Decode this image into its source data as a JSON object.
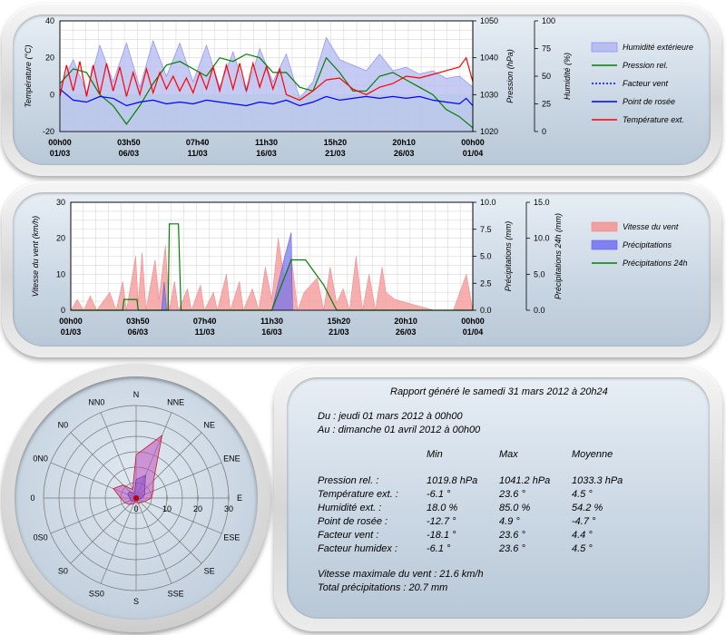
{
  "chart_data": [
    {
      "type": "line",
      "series": [
        {
          "name": "Humidité extérieure",
          "axis": "humidity",
          "color": "#8080ff"
        },
        {
          "name": "Pression rel.",
          "axis": "pressure",
          "color": "#008000"
        },
        {
          "name": "Facteur vent",
          "axis": "temperature",
          "color": "#0000ff",
          "dashed": true
        },
        {
          "name": "Point de rosée",
          "axis": "temperature",
          "color": "#0000ff"
        },
        {
          "name": "Température ext.",
          "axis": "temperature",
          "color": "#ff0000"
        }
      ],
      "ylabel": "Température (°C)",
      "y2label": "Pression (hPa)",
      "y3label": "Humidité (%)",
      "ylim": [
        -20,
        40
      ],
      "y2lim": [
        1020,
        1050
      ],
      "y3lim": [
        0,
        100
      ],
      "yticks": [
        "40",
        "20",
        "0",
        "-20"
      ],
      "y2ticks": [
        "1050",
        "1040",
        "1030",
        "1020"
      ],
      "y3ticks": [
        "100",
        "75",
        "50",
        "25",
        "0"
      ],
      "xticks": [
        {
          "time": "00h00",
          "date": "01/03"
        },
        {
          "time": "03h50",
          "date": "06/03"
        },
        {
          "time": "07h40",
          "date": "11/03"
        },
        {
          "time": "11h30",
          "date": "16/03"
        },
        {
          "time": "15h20",
          "date": "21/03"
        },
        {
          "time": "20h10",
          "date": "26/03"
        },
        {
          "time": "00h00",
          "date": "01/04"
        }
      ],
      "x_days": [
        1,
        32
      ],
      "temperature": [
        [
          1,
          -1
        ],
        [
          1.5,
          16
        ],
        [
          2,
          2
        ],
        [
          2.5,
          18
        ],
        [
          3,
          -1
        ],
        [
          3.5,
          16
        ],
        [
          4,
          0
        ],
        [
          4.5,
          17
        ],
        [
          5,
          2
        ],
        [
          5.5,
          15
        ],
        [
          6,
          -1
        ],
        [
          6.5,
          12
        ],
        [
          7,
          0
        ],
        [
          7.5,
          14
        ],
        [
          8,
          1
        ],
        [
          8.5,
          12
        ],
        [
          9,
          3
        ],
        [
          9.5,
          10
        ],
        [
          10,
          2
        ],
        [
          10.5,
          9
        ],
        [
          11,
          1
        ],
        [
          11.5,
          12
        ],
        [
          12,
          3
        ],
        [
          12.5,
          15
        ],
        [
          13,
          2
        ],
        [
          13.5,
          16
        ],
        [
          14,
          3
        ],
        [
          14.5,
          17
        ],
        [
          15,
          2
        ],
        [
          15.5,
          17
        ],
        [
          16,
          4
        ],
        [
          16.5,
          15
        ],
        [
          17,
          3
        ],
        [
          17.5,
          14
        ],
        [
          18,
          0
        ],
        [
          19,
          -3
        ],
        [
          20,
          2
        ],
        [
          21,
          8
        ],
        [
          22,
          9
        ],
        [
          23,
          3
        ],
        [
          24,
          0
        ],
        [
          25,
          4
        ],
        [
          26,
          6
        ],
        [
          27,
          10
        ],
        [
          28,
          9
        ],
        [
          29,
          11
        ],
        [
          30,
          13
        ],
        [
          31,
          15
        ],
        [
          31.5,
          20
        ],
        [
          32,
          7
        ]
      ],
      "dew_point": [
        [
          1,
          3
        ],
        [
          2,
          -3
        ],
        [
          3,
          -4
        ],
        [
          4,
          -1
        ],
        [
          5,
          -2
        ],
        [
          6,
          -6
        ],
        [
          7,
          -4
        ],
        [
          8,
          -3
        ],
        [
          9,
          -5
        ],
        [
          10,
          -4
        ],
        [
          11,
          -5
        ],
        [
          12,
          -3
        ],
        [
          13,
          -4
        ],
        [
          14,
          -5
        ],
        [
          15,
          -6
        ],
        [
          16,
          -4
        ],
        [
          17,
          -5
        ],
        [
          18,
          -3
        ],
        [
          19,
          -6
        ],
        [
          20,
          -4
        ],
        [
          21,
          -1
        ],
        [
          22,
          -3
        ],
        [
          23,
          -2
        ],
        [
          24,
          -1
        ],
        [
          25,
          -2
        ],
        [
          26,
          -1
        ],
        [
          27,
          -2
        ],
        [
          28,
          -1
        ],
        [
          29,
          -3
        ],
        [
          30,
          -4
        ],
        [
          31,
          -5
        ],
        [
          31.5,
          -2
        ],
        [
          32,
          -6
        ]
      ],
      "pressure": [
        [
          1,
          1033
        ],
        [
          2,
          1037
        ],
        [
          3,
          1036
        ],
        [
          4,
          1030
        ],
        [
          5,
          1027
        ],
        [
          6,
          1022
        ],
        [
          7,
          1027
        ],
        [
          8,
          1033
        ],
        [
          9,
          1038
        ],
        [
          10,
          1039
        ],
        [
          11,
          1037
        ],
        [
          12,
          1035
        ],
        [
          13,
          1040
        ],
        [
          14,
          1039
        ],
        [
          15,
          1041
        ],
        [
          16,
          1040
        ],
        [
          17,
          1036
        ],
        [
          18,
          1036
        ],
        [
          19,
          1032
        ],
        [
          20,
          1031
        ],
        [
          21,
          1040
        ],
        [
          22,
          1036
        ],
        [
          23,
          1031
        ],
        [
          24,
          1031
        ],
        [
          25,
          1035
        ],
        [
          26,
          1036
        ],
        [
          27,
          1034
        ],
        [
          28,
          1032
        ],
        [
          29,
          1030
        ],
        [
          30,
          1026
        ],
        [
          31,
          1024
        ],
        [
          32,
          1021
        ]
      ],
      "humidity": [
        [
          1,
          40
        ],
        [
          2,
          65
        ],
        [
          3,
          35
        ],
        [
          4,
          78
        ],
        [
          5,
          45
        ],
        [
          6,
          80
        ],
        [
          7,
          40
        ],
        [
          8,
          82
        ],
        [
          9,
          50
        ],
        [
          10,
          80
        ],
        [
          11,
          45
        ],
        [
          12,
          78
        ],
        [
          13,
          40
        ],
        [
          14,
          72
        ],
        [
          15,
          35
        ],
        [
          16,
          75
        ],
        [
          17,
          45
        ],
        [
          18,
          70
        ],
        [
          19,
          30
        ],
        [
          20,
          45
        ],
        [
          21,
          85
        ],
        [
          22,
          65
        ],
        [
          23,
          60
        ],
        [
          24,
          55
        ],
        [
          25,
          70
        ],
        [
          26,
          55
        ],
        [
          27,
          58
        ],
        [
          28,
          52
        ],
        [
          29,
          55
        ],
        [
          30,
          48
        ],
        [
          31,
          50
        ],
        [
          32,
          40
        ]
      ]
    },
    {
      "type": "area",
      "series": [
        {
          "name": "Vitesse du vent",
          "axis": "wind",
          "color": "#ff8080"
        },
        {
          "name": "Précipitations",
          "axis": "rain",
          "color": "#6060ff"
        },
        {
          "name": "Précipitations 24h",
          "axis": "rain24",
          "color": "#008000"
        }
      ],
      "ylabel": "Vitesse du vent (km/h)",
      "y2label": "Précipitations (mm)",
      "y3label": "Précipitations 24h (mm)",
      "ylim": [
        0,
        30
      ],
      "y2lim": [
        0,
        10
      ],
      "y3lim": [
        0,
        15
      ],
      "yticks": [
        "30",
        "20",
        "10",
        "0"
      ],
      "y2ticks": [
        "10.0",
        "7.5",
        "5.0",
        "2.5",
        "0.0"
      ],
      "y3ticks": [
        "15.0",
        "10.0",
        "5.0",
        "0.0"
      ],
      "xticks": [
        {
          "time": "00h00",
          "date": "01/03"
        },
        {
          "time": "03h50",
          "date": "06/03"
        },
        {
          "time": "07h40",
          "date": "11/03"
        },
        {
          "time": "11h30",
          "date": "16/03"
        },
        {
          "time": "15h20",
          "date": "21/03"
        },
        {
          "time": "20h10",
          "date": "26/03"
        },
        {
          "time": "00h00",
          "date": "01/04"
        }
      ],
      "x_days": [
        1,
        32
      ],
      "wind": [
        [
          1,
          0
        ],
        [
          1.5,
          3
        ],
        [
          2,
          0
        ],
        [
          2.5,
          4
        ],
        [
          3,
          0
        ],
        [
          4,
          5
        ],
        [
          4.5,
          0
        ],
        [
          5,
          8
        ],
        [
          5.3,
          0
        ],
        [
          6,
          15
        ],
        [
          6.2,
          2
        ],
        [
          6.5,
          16
        ],
        [
          6.8,
          0
        ],
        [
          7.5,
          14
        ],
        [
          7.8,
          3
        ],
        [
          8.3,
          18
        ],
        [
          8.6,
          0
        ],
        [
          9,
          8
        ],
        [
          9.3,
          0
        ],
        [
          10,
          6
        ],
        [
          10.3,
          0
        ],
        [
          11,
          7
        ],
        [
          11.3,
          0
        ],
        [
          12,
          5
        ],
        [
          12.3,
          0
        ],
        [
          13,
          10
        ],
        [
          13.3,
          0
        ],
        [
          14,
          8
        ],
        [
          14.3,
          0
        ],
        [
          15,
          6
        ],
        [
          15.5,
          0
        ],
        [
          16,
          12
        ],
        [
          16.5,
          3
        ],
        [
          17,
          20
        ],
        [
          17.5,
          8
        ],
        [
          18,
          15
        ],
        [
          18.5,
          0
        ],
        [
          19,
          5
        ],
        [
          20,
          9
        ],
        [
          20.5,
          0
        ],
        [
          21,
          12
        ],
        [
          21.5,
          2
        ],
        [
          22,
          6
        ],
        [
          22.5,
          0
        ],
        [
          23,
          15
        ],
        [
          23.5,
          0
        ],
        [
          24,
          10
        ],
        [
          24.5,
          0
        ],
        [
          25,
          12
        ],
        [
          25.3,
          5
        ],
        [
          26,
          3
        ],
        [
          27,
          2
        ],
        [
          28,
          1
        ],
        [
          29,
          0
        ],
        [
          30.5,
          0
        ],
        [
          31,
          5
        ],
        [
          31.5,
          10
        ],
        [
          32,
          0
        ]
      ],
      "rain": [
        [
          1,
          0
        ],
        [
          8.0,
          0
        ],
        [
          8.2,
          2.6
        ],
        [
          8.4,
          0
        ],
        [
          16.5,
          0
        ],
        [
          17.5,
          5
        ],
        [
          18.0,
          7.2
        ],
        [
          18.1,
          0
        ],
        [
          32,
          0
        ]
      ],
      "rain24": [
        [
          1,
          0
        ],
        [
          5.0,
          0
        ],
        [
          5.1,
          1.5
        ],
        [
          6.1,
          1.5
        ],
        [
          6.2,
          0
        ],
        [
          8.5,
          0
        ],
        [
          8.6,
          12
        ],
        [
          9.3,
          12
        ],
        [
          9.5,
          0
        ],
        [
          16.5,
          0
        ],
        [
          18.0,
          7
        ],
        [
          19.1,
          7
        ],
        [
          20.5,
          3.5
        ],
        [
          21.5,
          0
        ],
        [
          32,
          0
        ]
      ]
    },
    {
      "type": "radar",
      "directions": [
        "N",
        "NNE",
        "NE",
        "ENE",
        "E",
        "ESE",
        "SE",
        "SSE",
        "S",
        "SS0",
        "S0",
        "0S0",
        "0",
        "0N0",
        "N0",
        "NN0"
      ],
      "radial_ticks": [
        "0",
        "10",
        "20",
        "30"
      ],
      "rlim": [
        0,
        30
      ],
      "max_speed": [
        14,
        22,
        8,
        6,
        5,
        3,
        2,
        2,
        1,
        2,
        3,
        4,
        5,
        8,
        6,
        3
      ],
      "avg_speed": [
        6,
        8,
        4,
        3,
        2,
        1,
        1,
        1,
        0.5,
        1,
        1.5,
        2,
        2,
        3,
        3,
        1.5
      ]
    }
  ],
  "report": {
    "title": "Rapport généré le samedi 31 mars 2012 à 20h24",
    "from": "Du : jeudi 01 mars 2012 à 00h00",
    "to": "Au : dimanche 01 avril 2012 à 00h00",
    "headers": [
      "Min",
      "Max",
      "Moyenne"
    ],
    "rows": [
      {
        "label": "Pression rel. :",
        "min": "1019.8 hPa",
        "max": "1041.2 hPa",
        "avg": "1033.3 hPa"
      },
      {
        "label": "Température ext. :",
        "min": "-6.1 °",
        "max": "23.6 °",
        "avg": "4.5 °"
      },
      {
        "label": "Humidité ext. :",
        "min": "18.0 %",
        "max": "85.0 %",
        "avg": "54.2 %"
      },
      {
        "label": "Point de rosée :",
        "min": "-12.7 °",
        "max": "4.9 °",
        "avg": "-4.7 °"
      },
      {
        "label": "Facteur vent :",
        "min": "-18.1 °",
        "max": "23.6 °",
        "avg": "4.4 °"
      },
      {
        "label": "Facteur humidex :",
        "min": "-6.1 °",
        "max": "23.6 °",
        "avg": "4.5 °"
      }
    ],
    "wind_max": "Vitesse maximale du vent : 21.6 km/h",
    "rain_total": "Total précipitations : 20.7 mm"
  }
}
